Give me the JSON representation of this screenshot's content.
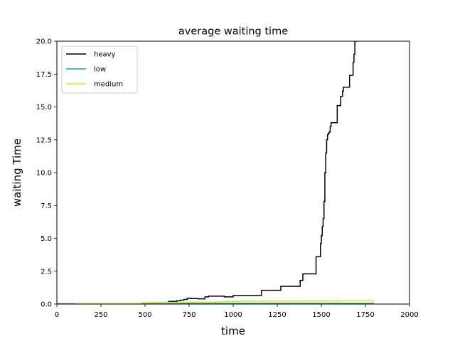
{
  "chart_data": {
    "type": "line",
    "title": "average waiting time",
    "xlabel": "time",
    "ylabel": "waiting Time",
    "xlim": [
      0,
      2000
    ],
    "ylim": [
      0,
      20
    ],
    "xticks": [
      0,
      250,
      500,
      750,
      1000,
      1250,
      1500,
      1750,
      2000
    ],
    "xtick_labels": [
      "0",
      "250",
      "500",
      "750",
      "1000",
      "1250",
      "1500",
      "1750",
      "2000"
    ],
    "yticks": [
      0,
      2.5,
      5,
      7.5,
      10,
      12.5,
      15,
      17.5,
      20
    ],
    "ytick_labels": [
      "0.0",
      "2.5",
      "5.0",
      "7.5",
      "10.0",
      "12.5",
      "15.0",
      "17.5",
      "20.0"
    ],
    "grid": false,
    "legend_position": "top-left",
    "series": [
      {
        "name": "heavy",
        "color": "#000000",
        "step": true,
        "x": [
          630,
          680,
          700,
          720,
          740,
          760,
          800,
          840,
          860,
          900,
          950,
          1000,
          1050,
          1100,
          1160,
          1250,
          1270,
          1380,
          1395,
          1440,
          1470,
          1490,
          1495,
          1500,
          1505,
          1510,
          1515,
          1520,
          1525,
          1530,
          1535,
          1540,
          1545,
          1550,
          1555,
          1570,
          1590,
          1610,
          1620,
          1625,
          1635,
          1660,
          1670,
          1680,
          1685,
          1690,
          1700
        ],
        "y": [
          0.2,
          0.25,
          0.3,
          0.35,
          0.45,
          0.42,
          0.4,
          0.55,
          0.6,
          0.6,
          0.55,
          0.65,
          0.65,
          0.65,
          1.05,
          1.05,
          1.35,
          1.8,
          2.3,
          2.3,
          3.6,
          3.6,
          4.6,
          5.2,
          5.9,
          6.5,
          7.8,
          10.0,
          11.5,
          12.5,
          12.9,
          13.0,
          13.1,
          13.5,
          13.8,
          13.8,
          15.1,
          15.8,
          16.2,
          16.5,
          16.5,
          17.4,
          17.4,
          18.4,
          19.0,
          20.0,
          20.6
        ]
      },
      {
        "name": "low",
        "color": "#17a2b8",
        "step": true,
        "x": [
          0,
          100,
          500,
          700,
          900,
          1100,
          1300,
          1500,
          1700,
          1800
        ],
        "y": [
          0.02,
          0.02,
          0.03,
          0.04,
          0.05,
          0.05,
          0.05,
          0.05,
          0.05,
          0.05
        ]
      },
      {
        "name": "medium",
        "color": "#d4f000",
        "step": true,
        "x": [
          100,
          460,
          480,
          520,
          580,
          650,
          750,
          900,
          950,
          1050,
          1200,
          1400,
          1500,
          1600,
          1700,
          1800
        ],
        "y": [
          0.02,
          0.04,
          0.1,
          0.12,
          0.13,
          0.13,
          0.15,
          0.17,
          0.2,
          0.22,
          0.22,
          0.23,
          0.23,
          0.24,
          0.24,
          0.24
        ]
      }
    ]
  }
}
